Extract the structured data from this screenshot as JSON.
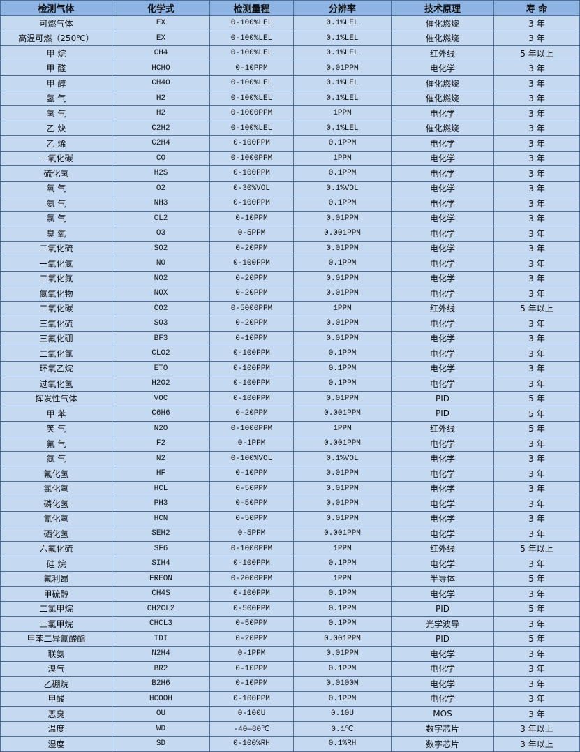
{
  "headers": [
    "检测气体",
    "化学式",
    "检测量程",
    "分辨率",
    "技术原理",
    "寿 命"
  ],
  "rows": [
    [
      "可燃气体",
      "EX",
      "0-100%LEL",
      "0.1%LEL",
      "催化燃烧",
      "3 年"
    ],
    [
      "高温可燃（250℃）",
      "EX",
      "0-100%LEL",
      "0.1%LEL",
      "催化燃烧",
      "3 年"
    ],
    [
      "甲 烷",
      "CH4",
      "0-100%LEL",
      "0.1%LEL",
      "红外线",
      "5 年以上"
    ],
    [
      "甲 醛",
      "HCHO",
      "0-10PPM",
      "0.01PPM",
      "电化学",
      "3 年"
    ],
    [
      "甲 醇",
      "CH4O",
      "0-100%LEL",
      "0.1%LEL",
      "催化燃烧",
      "3 年"
    ],
    [
      "氢 气",
      "H2",
      "0-100%LEL",
      "0.1%LEL",
      "催化燃烧",
      "3 年"
    ],
    [
      "氢 气",
      "H2",
      "0-1000PPM",
      "1PPM",
      "电化学",
      "3 年"
    ],
    [
      "乙 炔",
      "C2H2",
      "0-100%LEL",
      "0.1%LEL",
      "催化燃烧",
      "3 年"
    ],
    [
      "乙 烯",
      "C2H4",
      "0-100PPM",
      "0.1PPM",
      "电化学",
      "3 年"
    ],
    [
      "一氧化碳",
      "CO",
      "0-1000PPM",
      "1PPM",
      "电化学",
      "3 年"
    ],
    [
      "硫化氢",
      "H2S",
      "0-100PPM",
      "0.1PPM",
      "电化学",
      "3 年"
    ],
    [
      "氧 气",
      "O2",
      "0-30%VOL",
      "0.1%VOL",
      "电化学",
      "3 年"
    ],
    [
      "氨 气",
      "NH3",
      "0-100PPM",
      "0.1PPM",
      "电化学",
      "3 年"
    ],
    [
      "氯 气",
      "CL2",
      "0-10PPM",
      "0.01PPM",
      "电化学",
      "3 年"
    ],
    [
      "臭 氧",
      "O3",
      "0-5PPM",
      "0.001PPM",
      "电化学",
      "3 年"
    ],
    [
      "二氧化硫",
      "SO2",
      "0-20PPM",
      "0.01PPM",
      "电化学",
      "3 年"
    ],
    [
      "一氧化氮",
      "NO",
      "0-100PPM",
      "0.1PPM",
      "电化学",
      "3 年"
    ],
    [
      "二氧化氮",
      "NO2",
      "0-20PPM",
      "0.01PPM",
      "电化学",
      "3 年"
    ],
    [
      "氮氧化物",
      "NOX",
      "0-20PPM",
      "0.01PPM",
      "电化学",
      "3 年"
    ],
    [
      "二氧化碳",
      "CO2",
      "0-5000PPM",
      "1PPM",
      "红外线",
      "5 年以上"
    ],
    [
      "三氧化硫",
      "SO3",
      "0-20PPM",
      "0.01PPM",
      "电化学",
      "3 年"
    ],
    [
      "三氟化硼",
      "BF3",
      "0-10PPM",
      "0.01PPM",
      "电化学",
      "3 年"
    ],
    [
      "二氧化氯",
      "CLO2",
      "0-100PPM",
      "0.1PPM",
      "电化学",
      "3 年"
    ],
    [
      "环氧乙烷",
      "ETO",
      "0-100PPM",
      "0.1PPM",
      "电化学",
      "3 年"
    ],
    [
      "过氧化氢",
      "H2O2",
      "0-100PPM",
      "0.1PPM",
      "电化学",
      "3 年"
    ],
    [
      "挥发性气体",
      "VOC",
      "0-100PPM",
      "0.01PPM",
      "PID",
      "5 年"
    ],
    [
      "甲 苯",
      "C6H6",
      "0-20PPM",
      "0.001PPM",
      "PID",
      "5 年"
    ],
    [
      "笑 气",
      "N2O",
      "0-1000PPM",
      "1PPM",
      "红外线",
      "5 年"
    ],
    [
      "氟 气",
      "F2",
      "0-1PPM",
      "0.001PPM",
      "电化学",
      "3 年"
    ],
    [
      "氮 气",
      "N2",
      "0-100%VOL",
      "0.1%VOL",
      "电化学",
      "3 年"
    ],
    [
      "氟化氢",
      "HF",
      "0-10PPM",
      "0.01PPM",
      "电化学",
      "3 年"
    ],
    [
      "氯化氢",
      "HCL",
      "0-50PPM",
      "0.01PPM",
      "电化学",
      "3 年"
    ],
    [
      "磷化氢",
      "PH3",
      "0-50PPM",
      "0.01PPM",
      "电化学",
      "3 年"
    ],
    [
      "氰化氢",
      "HCN",
      "0-50PPM",
      "0.01PPM",
      "电化学",
      "3 年"
    ],
    [
      "硒化氢",
      "SEH2",
      "0-5PPM",
      "0.001PPM",
      "电化学",
      "3 年"
    ],
    [
      "六氟化硫",
      "SF6",
      "0-1000PPM",
      "1PPM",
      "红外线",
      "5 年以上"
    ],
    [
      "硅 烷",
      "SIH4",
      "0-100PPM",
      "0.1PPM",
      "电化学",
      "3 年"
    ],
    [
      "氟利昂",
      "FREON",
      "0-2000PPM",
      "1PPM",
      "半导体",
      "5 年"
    ],
    [
      "甲硫醇",
      "CH4S",
      "0-100PPM",
      "0.1PPM",
      "电化学",
      "3 年"
    ],
    [
      "二氯甲烷",
      "CH2CL2",
      "0-500PPM",
      "0.1PPM",
      "PID",
      "5 年"
    ],
    [
      "三氯甲烷",
      "CHCL3",
      "0-50PPM",
      "0.1PPM",
      "光学波导",
      "3 年"
    ],
    [
      "甲苯二异氰酸酯",
      "TDI",
      "0-20PPM",
      "0.001PPM",
      "PID",
      "5 年"
    ],
    [
      "联氨",
      "N2H4",
      "0-1PPM",
      "0.01PPM",
      "电化学",
      "3 年"
    ],
    [
      "溴气",
      "BR2",
      "0-10PPM",
      "0.1PPM",
      "电化学",
      "3 年"
    ],
    [
      "乙硼烷",
      "B2H6",
      "0-10PPM",
      "0.0100M",
      "电化学",
      "3 年"
    ],
    [
      "甲酸",
      "HCOOH",
      "0-100PPM",
      "0.1PPM",
      "电化学",
      "3 年"
    ],
    [
      "恶臭",
      "OU",
      "0-100U",
      "0.10U",
      "MOS",
      "3 年"
    ],
    [
      "温度",
      "WD",
      "-40—80℃",
      "0.1℃",
      "数字芯片",
      "3 年以上"
    ],
    [
      "湿度",
      "SD",
      "0-100%RH",
      "0.1%RH",
      "数字芯片",
      "3 年以上"
    ]
  ],
  "colors": {
    "header_bg": "#8db4e2",
    "row_bg": "#c5d9f1",
    "border": "#4f6f99"
  }
}
